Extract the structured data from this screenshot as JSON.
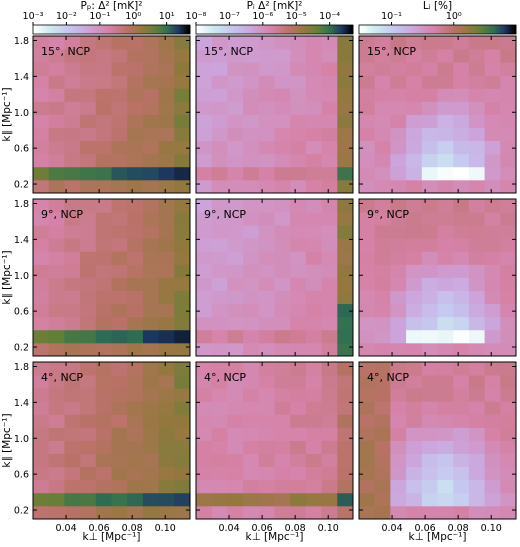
{
  "chart_data": {
    "type": "heatmap",
    "grid": {
      "rows": 3,
      "cols": 3,
      "nx": 10,
      "ny": 12
    },
    "xlim": [
      0.02,
      0.115
    ],
    "ylim": [
      0.1,
      1.85
    ],
    "xticks": [
      0.04,
      0.06,
      0.08,
      0.1
    ],
    "xtick_labels": [
      "0.04",
      "0.06",
      "0.08",
      "0.10"
    ],
    "yticks": [
      0.2,
      0.6,
      1.0,
      1.4,
      1.8
    ],
    "ytick_labels": [
      "0.2",
      "0.6",
      "1.0",
      "1.4",
      "1.8"
    ],
    "xlabel": "k⊥ [Mpc⁻¹]",
    "ylabel": "k∥ [Mpc⁻¹]",
    "row_labels": [
      "15°, NCP",
      "9°, NCP",
      "4°, NCP"
    ],
    "columns": [
      {
        "title": "Pₚ: Δ² [mK]²",
        "colorbar": {
          "scale": "log",
          "range": [
            0.001,
            50
          ],
          "ticks": [
            0.001,
            0.01,
            0.1,
            1,
            10
          ],
          "tick_labels": [
            "10⁻³",
            "10⁻²",
            "10⁻¹",
            "10⁰",
            "10¹"
          ]
        },
        "base": [
          0.45,
          0.55,
          0.65,
          0.75,
          0.82,
          0.88,
          0.95
        ]
      },
      {
        "title": "Pᵢ Δ² [mK]²",
        "colorbar": {
          "scale": "log",
          "range": [
            1e-08,
            0.0005
          ],
          "ticks": [
            1e-08,
            1e-07,
            1e-06,
            1e-05,
            0.0001
          ],
          "tick_labels": [
            "10⁻⁸",
            "10⁻⁷",
            "10⁻⁶",
            "10⁻⁵",
            "10⁻⁴"
          ]
        },
        "base": [
          0.35,
          0.45,
          0.55,
          0.7
        ]
      },
      {
        "title": "Lᵢ [%]",
        "colorbar": {
          "scale": "log",
          "range": [
            0.03,
            10
          ],
          "ticks": [
            0.1,
            1
          ],
          "tick_labels": [
            "10⁻¹",
            "10⁰"
          ]
        },
        "base": [
          0.38,
          0.45,
          0.55
        ]
      }
    ],
    "colormap": "cubehelix_r"
  }
}
